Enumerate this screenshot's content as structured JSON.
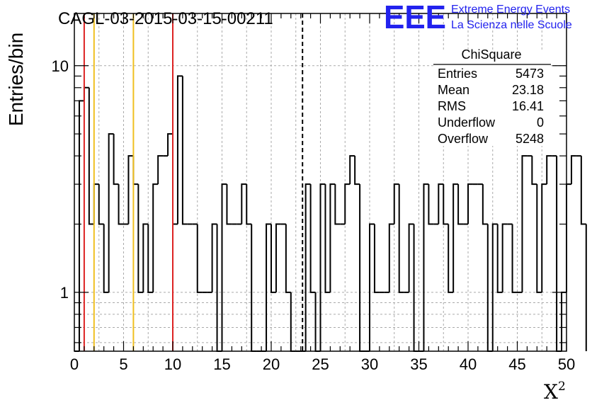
{
  "chart_data": {
    "type": "bar",
    "style": "step-histogram",
    "title": "CAGL-03-2015-03-15-00211",
    "xlabel": "X",
    "xlabel_superscript": "2",
    "ylabel": "Entries/bin",
    "xlim": [
      0,
      50
    ],
    "ylim": [
      0.55,
      17
    ],
    "y_log_scale": true,
    "grid": true,
    "bin_width": 0.5,
    "x_ticks": [
      "0",
      "5",
      "10",
      "15",
      "20",
      "25",
      "30",
      "35",
      "40",
      "45",
      "50"
    ],
    "y_ticks": [
      "1",
      "10"
    ],
    "values": [
      0,
      7,
      8,
      2,
      3,
      2,
      1,
      5,
      3,
      2,
      2,
      4,
      3,
      1,
      2,
      1,
      3,
      4,
      4,
      5,
      2,
      9,
      2,
      2,
      2,
      1,
      1,
      1,
      2,
      0,
      3,
      2,
      2,
      2,
      3,
      2,
      0,
      0,
      0,
      2,
      1,
      2,
      2,
      1,
      0,
      0,
      0,
      3,
      1,
      0,
      3,
      1,
      3,
      2,
      2,
      3,
      4,
      3,
      0,
      0,
      2,
      1,
      1,
      1,
      2,
      3,
      1,
      1,
      2,
      0,
      0,
      3,
      2,
      2,
      3,
      2,
      1,
      3,
      2,
      2,
      3,
      3,
      3,
      2,
      0,
      2,
      1,
      2,
      2,
      1,
      1,
      4,
      4,
      3,
      1,
      3,
      4,
      4,
      0,
      1,
      3,
      4,
      4,
      2
    ],
    "vertical_lines": [
      {
        "x": 1,
        "color": "#dd2222",
        "style": "solid"
      },
      {
        "x": 2,
        "color": "#f0c020",
        "style": "solid"
      },
      {
        "x": 6,
        "color": "#f0c020",
        "style": "solid"
      },
      {
        "x": 10,
        "color": "#dd2222",
        "style": "solid"
      },
      {
        "x": 23.18,
        "color": "#000000",
        "style": "dashed"
      }
    ],
    "stats_box": {
      "title": "ChiSquare",
      "rows": [
        {
          "label": "Entries",
          "value": "5473"
        },
        {
          "label": "Mean",
          "value": "23.18"
        },
        {
          "label": "RMS",
          "value": "16.41"
        },
        {
          "label": "Underflow",
          "value": "0"
        },
        {
          "label": "Overflow",
          "value": "5248"
        }
      ]
    }
  },
  "logo": {
    "mark": "EEE",
    "line1": "Extreme Energy Events",
    "line2": "La Scienza nelle Scuole",
    "color": "#2222ee"
  }
}
